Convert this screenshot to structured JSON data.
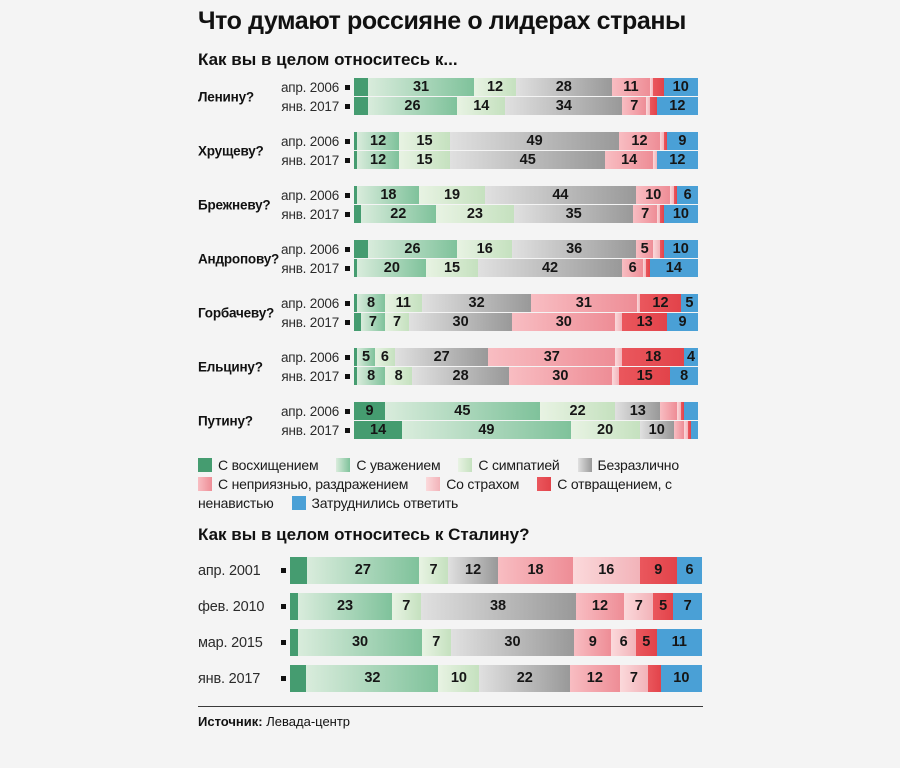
{
  "title": "Что думают россияне о лидерах страны",
  "sections": {
    "leaders": {
      "title": "Как вы в целом относитесь к..."
    },
    "stalin": {
      "title": "Как вы в целом относитесь к Сталину?"
    }
  },
  "footer": {
    "source_label": "Источник:",
    "source_value": "Левада-центр"
  },
  "chart_data": {
    "type": "bar",
    "stacked": true,
    "orientation": "horizontal",
    "unit": "percent",
    "xlim": [
      0,
      100
    ],
    "legend_position": "below-leaders-chart",
    "categories": [
      {
        "name": "С восхищением",
        "color": "#459c70",
        "color_light": "#459c70"
      },
      {
        "name": "С уважением",
        "color": "#7fc29b",
        "color_light": "#d9ecdc"
      },
      {
        "name": "С симпатией",
        "color": "#c5e1bf",
        "color_light": "#e8f3e3"
      },
      {
        "name": "Безразлично",
        "color": "#999999",
        "color_light": "#e0e0e0"
      },
      {
        "name": "С неприязнью, раздражением",
        "color": "#ee8d96",
        "color_light": "#f8bdc2"
      },
      {
        "name": "Со страхом",
        "color": "#f2b3b9",
        "color_light": "#fbd9db"
      },
      {
        "name": "С отвращением, с ненавистью",
        "color": "#e2434a",
        "color_light": "#ea575d"
      },
      {
        "name": "Затруднились ответить",
        "color": "#4aa0d6",
        "color_light": "#4aa0d6"
      }
    ],
    "leaders_chart": {
      "groups": [
        {
          "leader": "Ленину?",
          "rows": [
            {
              "label": "апр. 2006",
              "values": [
                4,
                31,
                12,
                28,
                11,
                1,
                3,
                10
              ],
              "labels": [
                "",
                "31",
                "12",
                "28",
                "11",
                "",
                "",
                "10"
              ]
            },
            {
              "label": "янв. 2017",
              "values": [
                4,
                26,
                14,
                34,
                7,
                1,
                2,
                12
              ],
              "labels": [
                "",
                "26",
                "14",
                "34",
                "7",
                "",
                "",
                "12"
              ]
            }
          ]
        },
        {
          "leader": "Хрущеву?",
          "rows": [
            {
              "label": "апр. 2006",
              "values": [
                1,
                12,
                15,
                49,
                12,
                1,
                1,
                9
              ],
              "labels": [
                "",
                "12",
                "15",
                "49",
                "12",
                "",
                "",
                "9"
              ]
            },
            {
              "label": "янв. 2017",
              "values": [
                1,
                12,
                15,
                45,
                14,
                1,
                0,
                12
              ],
              "labels": [
                "",
                "12",
                "15",
                "45",
                "14",
                "",
                "",
                "12"
              ]
            }
          ]
        },
        {
          "leader": "Брежневу?",
          "rows": [
            {
              "label": "апр. 2006",
              "values": [
                1,
                18,
                19,
                44,
                10,
                1,
                1,
                6
              ],
              "labels": [
                "",
                "18",
                "19",
                "44",
                "10",
                "",
                "",
                "6"
              ]
            },
            {
              "label": "янв. 2017",
              "values": [
                2,
                22,
                23,
                35,
                7,
                1,
                1,
                10
              ],
              "labels": [
                "",
                "22",
                "23",
                "35",
                "7",
                "",
                "",
                "10"
              ]
            }
          ]
        },
        {
          "leader": "Андропову?",
          "rows": [
            {
              "label": "апр. 2006",
              "values": [
                4,
                26,
                16,
                36,
                5,
                2,
                1,
                10
              ],
              "labels": [
                "",
                "26",
                "16",
                "36",
                "5",
                "",
                "",
                "10"
              ]
            },
            {
              "label": "янв. 2017",
              "values": [
                1,
                20,
                15,
                42,
                6,
                1,
                1,
                14
              ],
              "labels": [
                "",
                "20",
                "15",
                "42",
                "6",
                "",
                "",
                "14"
              ]
            }
          ]
        },
        {
          "leader": "Горбачеву?",
          "rows": [
            {
              "label": "апр. 2006",
              "values": [
                1,
                8,
                11,
                32,
                31,
                1,
                12,
                5
              ],
              "labels": [
                "",
                "8",
                "11",
                "32",
                "31",
                "",
                "12",
                "5"
              ]
            },
            {
              "label": "янв. 2017",
              "values": [
                2,
                7,
                7,
                30,
                30,
                2,
                13,
                9
              ],
              "labels": [
                "",
                "7",
                "7",
                "30",
                "30",
                "",
                "13",
                "9"
              ]
            }
          ]
        },
        {
          "leader": "Ельцину?",
          "rows": [
            {
              "label": "апр. 2006",
              "values": [
                1,
                5,
                6,
                27,
                37,
                2,
                18,
                4
              ],
              "labels": [
                "",
                "5",
                "6",
                "27",
                "37",
                "",
                "18",
                "4"
              ]
            },
            {
              "label": "янв. 2017",
              "values": [
                1,
                8,
                8,
                28,
                30,
                2,
                15,
                8
              ],
              "labels": [
                "",
                "8",
                "8",
                "28",
                "30",
                "",
                "15",
                "8"
              ]
            }
          ]
        },
        {
          "leader": "Путину?",
          "rows": [
            {
              "label": "апр. 2006",
              "values": [
                9,
                45,
                22,
                13,
                5,
                1,
                1,
                4
              ],
              "labels": [
                "9",
                "45",
                "22",
                "13",
                "",
                "",
                "",
                ""
              ]
            },
            {
              "label": "янв. 2017",
              "values": [
                14,
                49,
                20,
                10,
                3,
                1,
                1,
                2
              ],
              "labels": [
                "14",
                "49",
                "20",
                "10",
                "",
                "",
                "",
                ""
              ]
            }
          ]
        }
      ]
    },
    "stalin_chart": {
      "rows": [
        {
          "label": "апр. 2001",
          "values": [
            4,
            27,
            7,
            12,
            18,
            16,
            9,
            6
          ],
          "labels": [
            "",
            "27",
            "7",
            "12",
            "18",
            "16",
            "9",
            "6"
          ]
        },
        {
          "label": "фев. 2010",
          "values": [
            2,
            23,
            7,
            38,
            12,
            7,
            5,
            7
          ],
          "labels": [
            "",
            "23",
            "7",
            "38",
            "12",
            "7",
            "5",
            "7"
          ]
        },
        {
          "label": "мар. 2015",
          "values": [
            2,
            30,
            7,
            30,
            9,
            6,
            5,
            11
          ],
          "labels": [
            "",
            "30",
            "7",
            "30",
            "9",
            "6",
            "5",
            "11"
          ]
        },
        {
          "label": "янв. 2017",
          "values": [
            4,
            32,
            10,
            22,
            12,
            7,
            3,
            10
          ],
          "labels": [
            "",
            "32",
            "10",
            "22",
            "12",
            "7",
            "",
            "10"
          ]
        }
      ]
    }
  }
}
